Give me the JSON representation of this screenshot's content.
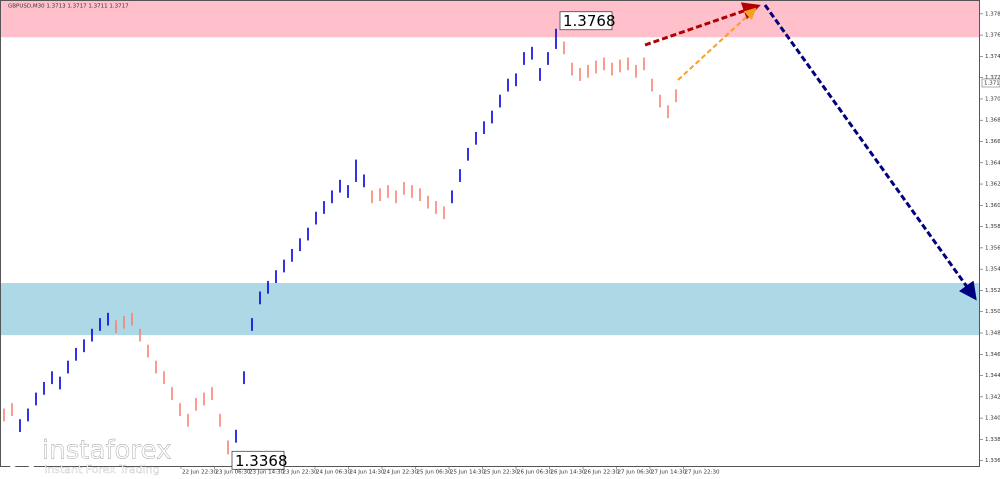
{
  "chart_data": {
    "type": "ohlc",
    "title": "GBPUSD,M30 1.3713 1.3717 1.3711 1.3717",
    "ylim": [
      1.3357,
      1.3795
    ],
    "yticks": [
      1.3362,
      1.3382,
      1.3402,
      1.3422,
      1.3442,
      1.3462,
      1.3482,
      1.3502,
      1.3522,
      1.3542,
      1.3562,
      1.3582,
      1.3602,
      1.3622,
      1.3642,
      1.3662,
      1.3682,
      1.3702,
      1.3722,
      1.3742,
      1.3762,
      1.3782
    ],
    "xticks": [
      "22 Jun 22:30",
      "23 Jun 06:30",
      "23 Jun 14:30",
      "23 Jun 22:30",
      "24 Jun 06:30",
      "24 Jun 14:30",
      "24 Jun 22:30",
      "25 Jun 06:30",
      "25 Jun 14:30",
      "25 Jun 22:30",
      "26 Jun 06:30",
      "26 Jun 14:30",
      "26 Jun 22:30",
      "27 Jun 06:30",
      "27 Jun 14:30",
      "27 Jun 22:30"
    ],
    "zones": [
      {
        "from": 1.376,
        "to": 1.3795,
        "color": "#ffc0cb"
      },
      {
        "from": 1.348,
        "to": 1.3529,
        "color": "#add8e6"
      }
    ],
    "segments": [
      {
        "color": "#fa8072",
        "high": [
          1.3411,
          1.3416
        ],
        "low": [
          1.3399,
          1.3404
        ]
      },
      {
        "color": "#0000dd",
        "high": [
          1.3401,
          1.3411,
          1.3426,
          1.3436,
          1.3446,
          1.3441,
          1.3456,
          1.3468,
          1.3476,
          1.3486,
          1.3496,
          1.3501
        ],
        "low": [
          1.3389,
          1.3399,
          1.3414,
          1.3424,
          1.3434,
          1.3429,
          1.3444,
          1.3456,
          1.3464,
          1.3474,
          1.3484,
          1.3489
        ]
      },
      {
        "color": "#fa8072",
        "high": [
          1.3494,
          1.3498,
          1.3501,
          1.3486,
          1.3471,
          1.3456,
          1.3446,
          1.3431,
          1.3416,
          1.3406,
          1.3421,
          1.3426,
          1.3431,
          1.3406,
          1.3381
        ],
        "low": [
          1.3482,
          1.3486,
          1.3489,
          1.3474,
          1.3459,
          1.3444,
          1.3434,
          1.3419,
          1.3404,
          1.3394,
          1.3409,
          1.3414,
          1.3419,
          1.3394,
          1.3368
        ]
      },
      {
        "color": "#0000dd",
        "high": [
          1.3391,
          1.3446,
          1.3496,
          1.3521,
          1.3531,
          1.3541,
          1.3551,
          1.3561,
          1.3571,
          1.3581,
          1.3596,
          1.3606,
          1.3616,
          1.3626,
          1.3621,
          1.3645,
          1.3631
        ],
        "low": [
          1.3379,
          1.3434,
          1.3484,
          1.3509,
          1.3519,
          1.3529,
          1.3539,
          1.3549,
          1.3559,
          1.3569,
          1.3584,
          1.3594,
          1.3604,
          1.3614,
          1.3609,
          1.3624,
          1.3619
        ]
      },
      {
        "color": "#fa8072",
        "high": [
          1.3616,
          1.3618,
          1.3621,
          1.3616,
          1.3624,
          1.3621,
          1.3618,
          1.3611,
          1.3606,
          1.3601
        ],
        "low": [
          1.3604,
          1.3606,
          1.3609,
          1.3604,
          1.3612,
          1.3609,
          1.3606,
          1.3599,
          1.3594,
          1.3589
        ]
      },
      {
        "color": "#0000dd",
        "high": [
          1.3616,
          1.3636,
          1.3656,
          1.3671,
          1.3681,
          1.3691,
          1.3706,
          1.3721,
          1.3726,
          1.3746,
          1.3751,
          1.3731,
          1.3746,
          1.3768
        ],
        "low": [
          1.3604,
          1.3624,
          1.3644,
          1.3659,
          1.3669,
          1.3679,
          1.3694,
          1.3709,
          1.3714,
          1.3734,
          1.3739,
          1.3719,
          1.3734,
          1.3749
        ]
      },
      {
        "color": "#fa8072",
        "high": [
          1.3756,
          1.3736,
          1.3731,
          1.3734,
          1.3738,
          1.3741,
          1.3736,
          1.3739,
          1.3741,
          1.3734,
          1.3741,
          1.3721,
          1.3706,
          1.3696,
          1.3711
        ],
        "low": [
          1.3744,
          1.3724,
          1.3719,
          1.3722,
          1.3726,
          1.3729,
          1.3724,
          1.3727,
          1.3729,
          1.3722,
          1.3729,
          1.3709,
          1.3694,
          1.3684,
          1.3699
        ]
      }
    ],
    "annotations": [
      {
        "value": 1.3768,
        "label": "1.3768"
      },
      {
        "value": 1.3368,
        "label": "1.3368"
      }
    ],
    "current_price": {
      "value": 1.3717,
      "label": "1.3717"
    },
    "logo": {
      "name": "instaforex",
      "tagline": "Instant Forex Trading"
    }
  }
}
